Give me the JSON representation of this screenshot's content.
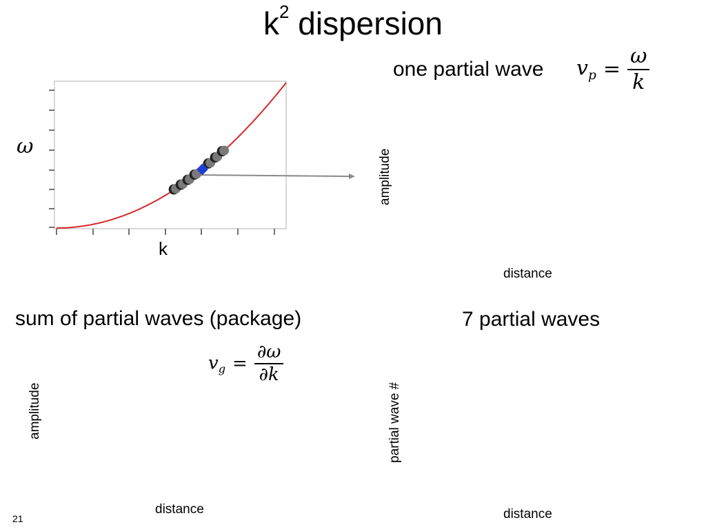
{
  "slide": {
    "title_base": "k",
    "title_exponent": "2",
    "title_rest": "dispersion",
    "slide_number": "21"
  },
  "dispersion_plot": {
    "y_symbol": "ω",
    "x_label": "k",
    "curve_color": "#d62728",
    "selected_color": "#1f3fd6",
    "neighbor_color": "#7a7a7a",
    "neighbor_k": [
      0.52,
      0.55,
      0.58,
      0.61,
      0.67,
      0.7,
      0.73
    ],
    "selected_k": 0.635,
    "arrow_target": "amplitude-axis"
  },
  "one_partial_wave": {
    "heading": "one partial wave",
    "formula_lhs": "v",
    "formula_sub": "p",
    "formula_eq": "=",
    "formula_num": "ω",
    "formula_den": "k",
    "y_label": "amplitude",
    "x_label": "distance"
  },
  "package": {
    "heading": "sum of partial waves (package)",
    "formula_lhs": "v",
    "formula_sub": "g",
    "formula_eq": "=",
    "formula_num": "∂ω",
    "formula_den": "∂k",
    "y_label": "amplitude",
    "x_label": "distance"
  },
  "seven_waves": {
    "heading": "7 partial waves",
    "y_label": "partial wave #",
    "x_label": "distance"
  }
}
